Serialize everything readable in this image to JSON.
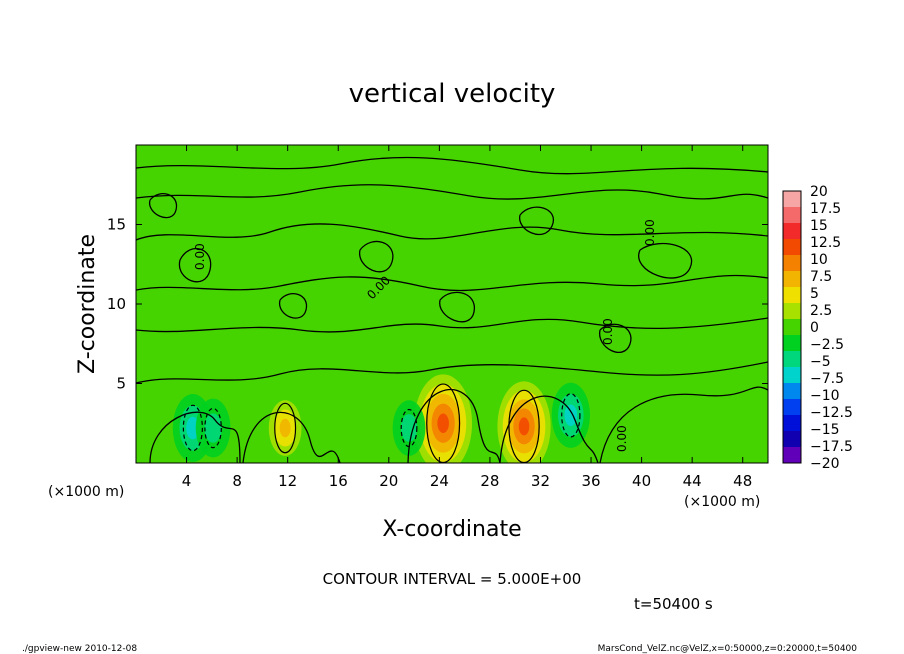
{
  "chart_data": {
    "type": "heatmap",
    "title": "vertical velocity",
    "xlabel": "X-coordinate",
    "ylabel": "Z-coordinate",
    "x_unit": "(×1000 m)",
    "x_unit_right": "(×1000 m)",
    "xlim": [
      0,
      50
    ],
    "ylim": [
      0,
      20
    ],
    "x_ticks": [
      4,
      8,
      12,
      16,
      20,
      24,
      28,
      32,
      36,
      40,
      44,
      48
    ],
    "y_ticks": [
      5,
      10,
      15
    ],
    "contour_interval_text": "CONTOUR INTERVAL = 5.000E+00",
    "time_text": "t=50400 s",
    "contour_labels": [
      "0.00",
      "0.00",
      "0.00",
      "0.00",
      "0.00"
    ],
    "colorbar": {
      "labels": [
        "20",
        "17.5",
        "15",
        "12.5",
        "10",
        "7.5",
        "5",
        "2.5",
        "0",
        "−2.5",
        "−5",
        "−7.5",
        "−10",
        "−12.5",
        "−15",
        "−17.5",
        "−20"
      ],
      "colors": [
        "#f7a6a6",
        "#f46a6a",
        "#f22a2a",
        "#f24a00",
        "#f48200",
        "#f2b400",
        "#f0e000",
        "#a8e000",
        "#46d400",
        "#00d020",
        "#00d67c",
        "#00d2cc",
        "#0088ee",
        "#0040f0",
        "#0010d8",
        "#1000b0",
        "#6000b8"
      ]
    },
    "blobs": [
      {
        "x": 24.3,
        "z": 2.5,
        "w": 15,
        "zmax": 3.8,
        "sign": 1
      },
      {
        "x": 30.7,
        "z": 2.3,
        "w": 14,
        "zmax": 3.5,
        "sign": 1
      },
      {
        "x": 11.8,
        "z": 2.2,
        "w": 9,
        "zmax": 2.4,
        "sign": 1
      },
      {
        "x": 4.5,
        "z": 2.2,
        "w": -7,
        "zmax": 2.2,
        "sign": -1
      },
      {
        "x": 6.1,
        "z": 2.2,
        "w": -6,
        "zmax": 1.9,
        "sign": -1
      },
      {
        "x": 21.6,
        "z": 2.2,
        "w": -5,
        "zmax": 1.8,
        "sign": -1
      },
      {
        "x": 34.4,
        "z": 3.0,
        "w": -8,
        "zmax": 2.1,
        "sign": -1
      }
    ]
  },
  "footer": {
    "left": "./gpview-new  2010-12-08",
    "right": "MarsCond_VelZ.nc@VelZ,x=0:50000,z=0:20000,t=50400"
  }
}
